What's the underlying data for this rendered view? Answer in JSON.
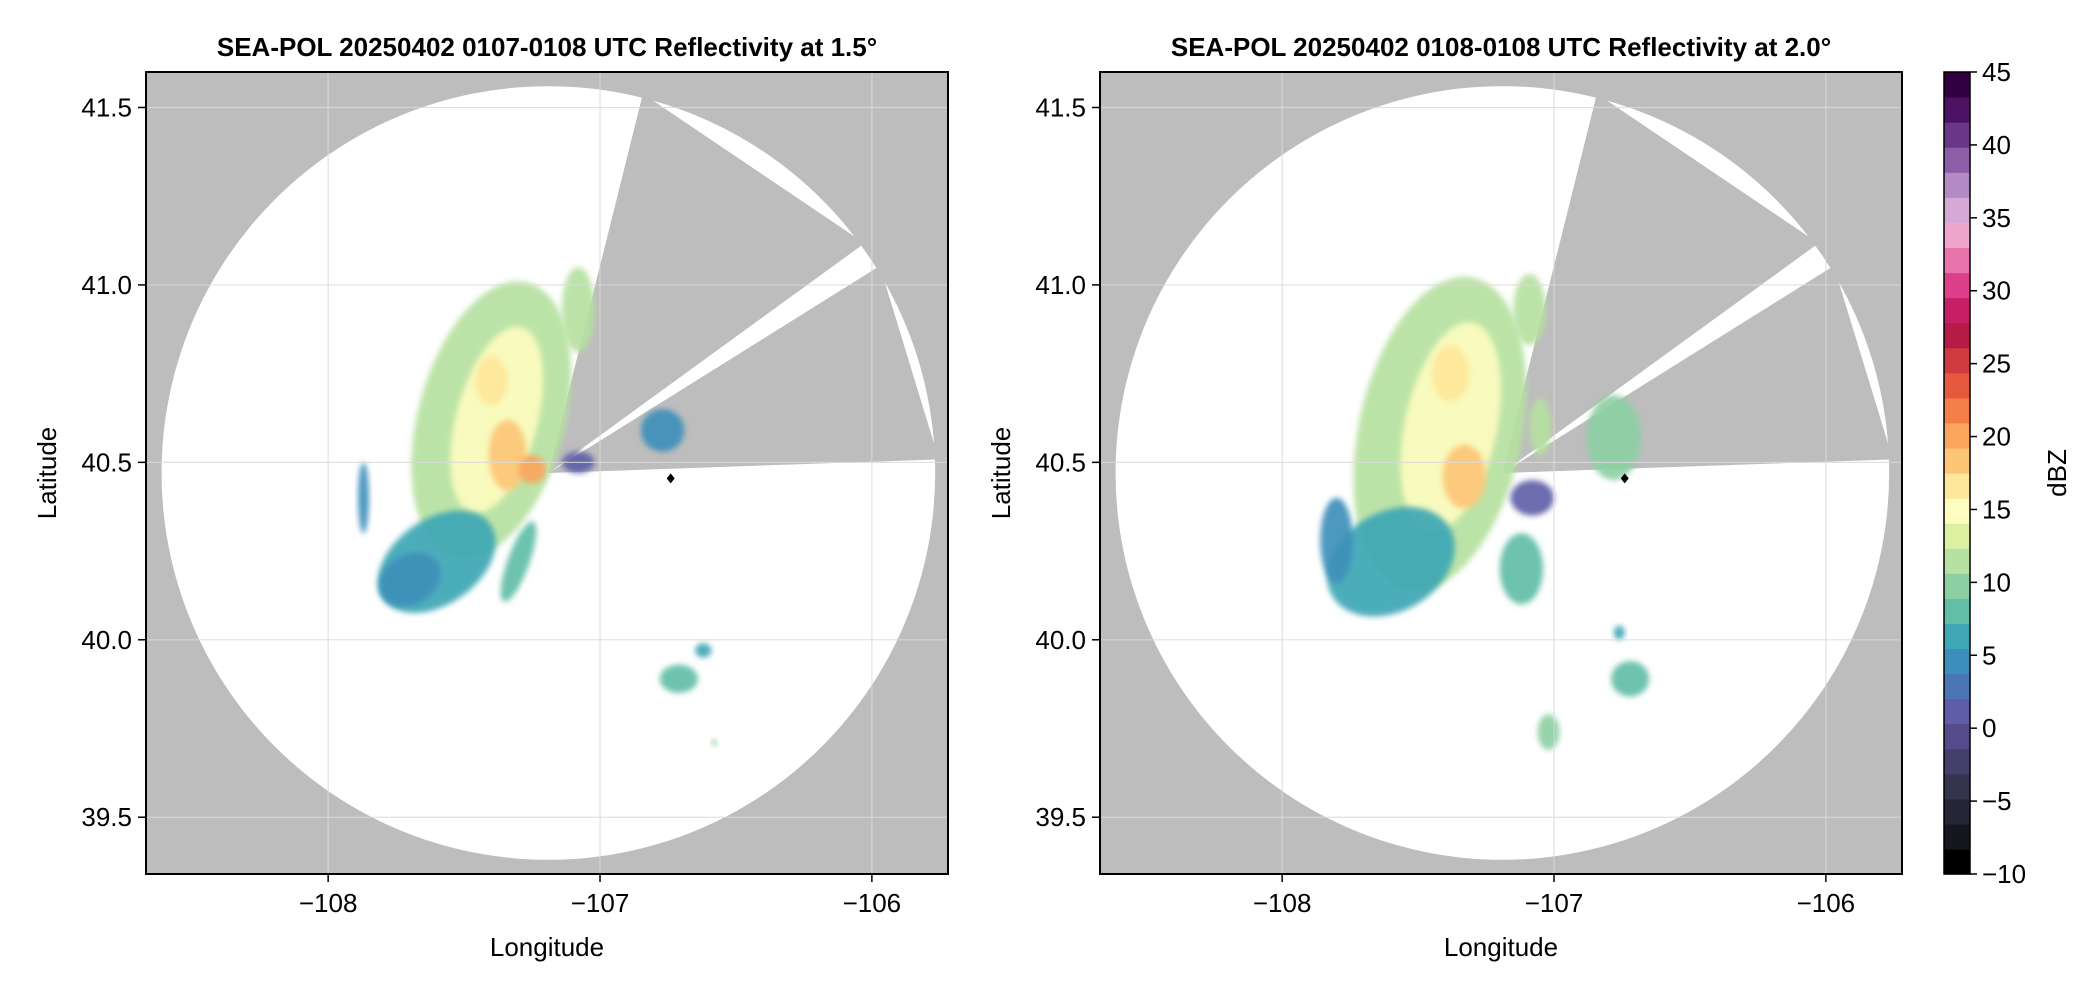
{
  "colors": {
    "outside_range": "#bdbdbd",
    "no_echo": "#ffffff",
    "grid": "#d9d9d9",
    "frame": "#000000",
    "radar_marker": "#000000"
  },
  "colorbar": {
    "label": "dBZ",
    "min": -10,
    "max": 45,
    "step": 2.5,
    "ticks": [
      "45",
      "40",
      "35",
      "30",
      "25",
      "20",
      "15",
      "10",
      "5",
      "0",
      "−5",
      "−10"
    ],
    "tick_values": [
      45,
      40,
      35,
      30,
      25,
      20,
      15,
      10,
      5,
      0,
      -5,
      -10
    ],
    "colors": [
      "#000000",
      "#16161f",
      "#252535",
      "#34344e",
      "#443f6b",
      "#564b8a",
      "#5e5ea8",
      "#4b76b5",
      "#3c8fba",
      "#3ea6b4",
      "#62bea6",
      "#8ccfa3",
      "#b6e1a0",
      "#dcf0a2",
      "#fdfdbf",
      "#fee79a",
      "#fdc677",
      "#fca55c",
      "#f47e48",
      "#e55a3f",
      "#cf3b41",
      "#b61b47",
      "#c61f66",
      "#dd3f8b",
      "#ea73ab",
      "#f0a5cc",
      "#d6a8d6",
      "#b38bc4",
      "#8d5ea7",
      "#6b3889",
      "#4d1263",
      "#320042"
    ]
  },
  "chart_data": [
    {
      "type": "heatmap",
      "title": "SEA-POL 20250402 0107-0108 UTC Reflectivity at 1.5°",
      "xlabel": "Longitude",
      "ylabel": "Latitude",
      "xlim": [
        -108.67,
        -105.72
      ],
      "ylim": [
        39.34,
        41.6
      ],
      "x_ticks": [
        "−108",
        "−107",
        "−106"
      ],
      "x_tick_values": [
        -108,
        -107,
        -106
      ],
      "y_ticks": [
        "39.5",
        "40.0",
        "40.5",
        "41.0",
        "41.5"
      ],
      "y_tick_values": [
        39.5,
        40.0,
        40.5,
        41.0,
        41.5
      ],
      "grid": true,
      "radar": {
        "lon": -107.19,
        "lat": 40.47,
        "range_deg_lat": 1.09,
        "blocked_sectors_deg": [
          [
            14,
            54
          ],
          [
            58,
            88
          ]
        ]
      },
      "echo_cells": [
        {
          "lon": -107.4,
          "lat": 40.62,
          "dbz": 22,
          "rx": 0.27,
          "ry": 0.4,
          "angle": 15
        },
        {
          "lon": -107.38,
          "lat": 40.62,
          "dbz": 27,
          "rx": 0.15,
          "ry": 0.27,
          "angle": 15
        },
        {
          "lon": -107.34,
          "lat": 40.52,
          "dbz": 32,
          "rx": 0.07,
          "ry": 0.1,
          "angle": 0
        },
        {
          "lon": -107.4,
          "lat": 40.73,
          "dbz": 29,
          "rx": 0.06,
          "ry": 0.07,
          "angle": 0
        },
        {
          "lon": -107.25,
          "lat": 40.48,
          "dbz": 34,
          "rx": 0.05,
          "ry": 0.04,
          "angle": 0
        },
        {
          "lon": -107.6,
          "lat": 40.22,
          "dbz": 14,
          "rx": 0.24,
          "ry": 0.12,
          "angle": -35
        },
        {
          "lon": -107.7,
          "lat": 40.17,
          "dbz": 11,
          "rx": 0.12,
          "ry": 0.07,
          "angle": -30
        },
        {
          "lon": -107.3,
          "lat": 40.22,
          "dbz": 16,
          "rx": 0.04,
          "ry": 0.12,
          "angle": 20
        },
        {
          "lon": -107.08,
          "lat": 40.93,
          "dbz": 21,
          "rx": 0.06,
          "ry": 0.12,
          "angle": 0
        },
        {
          "lon": -107.87,
          "lat": 40.4,
          "dbz": 10,
          "rx": 0.02,
          "ry": 0.1,
          "angle": 0
        },
        {
          "lon": -106.77,
          "lat": 40.59,
          "dbz": 12,
          "rx": 0.08,
          "ry": 0.06,
          "angle": 0
        },
        {
          "lon": -107.08,
          "lat": 40.5,
          "dbz": 5,
          "rx": 0.06,
          "ry": 0.03,
          "angle": 0
        },
        {
          "lon": -106.71,
          "lat": 39.89,
          "dbz": 16,
          "rx": 0.07,
          "ry": 0.04,
          "angle": 0
        },
        {
          "lon": -106.62,
          "lat": 39.97,
          "dbz": 14,
          "rx": 0.03,
          "ry": 0.02,
          "angle": 0
        },
        {
          "lon": -106.58,
          "lat": 39.71,
          "dbz": 18,
          "rx": 0.01,
          "ry": 0.01,
          "angle": 0
        }
      ]
    },
    {
      "type": "heatmap",
      "title": "SEA-POL 20250402 0108-0108 UTC Reflectivity at 2.0°",
      "xlabel": "Longitude",
      "ylabel": "Latitude",
      "xlim": [
        -108.67,
        -105.72
      ],
      "ylim": [
        39.34,
        41.6
      ],
      "x_ticks": [
        "−108",
        "−107",
        "−106"
      ],
      "x_tick_values": [
        -108,
        -107,
        -106
      ],
      "y_ticks": [
        "39.5",
        "40.0",
        "40.5",
        "41.0",
        "41.5"
      ],
      "y_tick_values": [
        39.5,
        40.0,
        40.5,
        41.0,
        41.5
      ],
      "grid": true,
      "radar": {
        "lon": -107.19,
        "lat": 40.47,
        "range_deg_lat": 1.09,
        "blocked_sectors_deg": [
          [
            14,
            54
          ],
          [
            58,
            88
          ]
        ]
      },
      "echo_cells": [
        {
          "lon": -107.42,
          "lat": 40.58,
          "dbz": 22,
          "rx": 0.3,
          "ry": 0.45,
          "angle": 12
        },
        {
          "lon": -107.38,
          "lat": 40.6,
          "dbz": 27,
          "rx": 0.17,
          "ry": 0.3,
          "angle": 12
        },
        {
          "lon": -107.33,
          "lat": 40.46,
          "dbz": 32,
          "rx": 0.08,
          "ry": 0.09,
          "angle": 0
        },
        {
          "lon": -107.38,
          "lat": 40.75,
          "dbz": 29,
          "rx": 0.07,
          "ry": 0.08,
          "angle": 0
        },
        {
          "lon": -107.6,
          "lat": 40.22,
          "dbz": 13,
          "rx": 0.25,
          "ry": 0.14,
          "angle": -30
        },
        {
          "lon": -107.12,
          "lat": 40.2,
          "dbz": 16,
          "rx": 0.08,
          "ry": 0.1,
          "angle": 0
        },
        {
          "lon": -107.09,
          "lat": 40.93,
          "dbz": 21,
          "rx": 0.06,
          "ry": 0.1,
          "angle": 0
        },
        {
          "lon": -107.05,
          "lat": 40.6,
          "dbz": 20,
          "rx": 0.04,
          "ry": 0.08,
          "angle": 0
        },
        {
          "lon": -106.78,
          "lat": 40.57,
          "dbz": 18,
          "rx": 0.1,
          "ry": 0.12,
          "angle": 0
        },
        {
          "lon": -107.08,
          "lat": 40.4,
          "dbz": 6,
          "rx": 0.08,
          "ry": 0.05,
          "angle": 0
        },
        {
          "lon": -107.8,
          "lat": 40.28,
          "dbz": 11,
          "rx": 0.06,
          "ry": 0.12,
          "angle": 0
        },
        {
          "lon": -106.72,
          "lat": 39.89,
          "dbz": 17,
          "rx": 0.07,
          "ry": 0.05,
          "angle": 0
        },
        {
          "lon": -106.76,
          "lat": 40.02,
          "dbz": 13,
          "rx": 0.02,
          "ry": 0.02,
          "angle": 0
        },
        {
          "lon": -107.02,
          "lat": 39.74,
          "dbz": 19,
          "rx": 0.04,
          "ry": 0.05,
          "angle": 0
        }
      ]
    }
  ]
}
